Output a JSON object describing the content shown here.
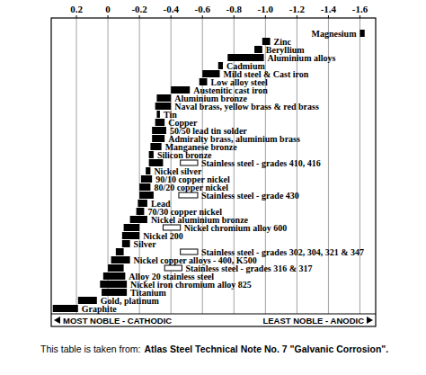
{
  "chart_data": {
    "type": "bar",
    "orientation": "horizontal",
    "color": "#000000",
    "grid": true,
    "xlim": [
      0.36,
      -1.7
    ],
    "xticks": [
      0.2,
      0,
      -0.2,
      -0.4,
      -0.6,
      -0.8,
      {
        "value": -1,
        "label": "-1.0"
      },
      -1.2,
      -1.4,
      -1.6
    ],
    "categories": [
      "Magnesium",
      "Zinc",
      "Beryllium",
      "Aluminium alloys",
      "Cadmium",
      "Mild steel & Cast iron",
      "Low alloy steel",
      "Austenitic cast iron",
      "Aluminium bronze",
      "Naval brass, yellow brass & red brass",
      "Tin",
      "Copper",
      "50/50 lead tin solder",
      "Admiralty brass, aluminium brass",
      "Manganese bronze",
      "Silicon bronze",
      "Stainless steel  - grades 410, 416",
      "Nickel silver",
      "90/10 copper nickel",
      "80/20 copper nickel",
      "Stainless steel  - grade 430",
      "Lead",
      "70/30 copper nickel",
      "Nickel aluminium bronze",
      "Nickel chromium alloy 600",
      "Nickel 200",
      "Silver",
      "Stainless steel  - grades 302, 304, 321 & 347",
      "Nickel copper alloys - 400, K500",
      "Stainless steel - grades 316 & 317",
      "Alloy 20 stainless steel",
      "Nickel iron chromium alloy 825",
      "Titanium",
      "Gold, platinum",
      "Graphite"
    ],
    "values": [
      [
        -1.6,
        -1.63
      ],
      [
        -0.98,
        -1.03
      ],
      [
        -0.93,
        -0.98
      ],
      [
        -0.76,
        -0.99
      ],
      [
        -0.7,
        -0.73
      ],
      [
        -0.6,
        -0.71
      ],
      [
        -0.58,
        -0.63
      ],
      [
        -0.4,
        -0.52
      ],
      [
        -0.31,
        -0.4
      ],
      [
        -0.3,
        -0.4
      ],
      [
        -0.31,
        -0.33
      ],
      [
        -0.3,
        -0.36
      ],
      [
        -0.28,
        -0.37
      ],
      [
        -0.28,
        -0.36
      ],
      [
        -0.27,
        -0.34
      ],
      [
        -0.26,
        -0.29
      ],
      [
        -0.26,
        -0.35
      ],
      [
        -0.24,
        -0.27
      ],
      [
        -0.21,
        -0.28
      ],
      [
        -0.2,
        -0.27
      ],
      [
        -0.2,
        -0.29
      ],
      [
        -0.19,
        -0.25
      ],
      [
        -0.18,
        -0.23
      ],
      [
        -0.14,
        -0.25
      ],
      [
        -0.1,
        -0.2
      ],
      [
        -0.09,
        -0.2
      ],
      [
        -0.09,
        -0.14
      ],
      [
        -0.05,
        -0.1
      ],
      [
        -0.02,
        -0.14
      ],
      [
        0,
        -0.1
      ],
      [
        0.03,
        -0.11
      ],
      [
        0.05,
        -0.12
      ],
      [
        0.04,
        -0.12
      ],
      [
        0.19,
        0.07
      ],
      [
        0.35,
        0.19
      ]
    ],
    "active_values": [
      null,
      null,
      null,
      null,
      null,
      null,
      null,
      null,
      null,
      null,
      null,
      null,
      null,
      null,
      null,
      null,
      [
        -0.46,
        -0.57
      ],
      null,
      null,
      null,
      [
        -0.45,
        -0.57
      ],
      null,
      null,
      null,
      [
        -0.35,
        -0.46
      ],
      null,
      null,
      [
        -0.46,
        -0.57
      ],
      null,
      [
        -0.36,
        -0.47
      ],
      null,
      null,
      null,
      null,
      null
    ],
    "annotations": [
      "MOST NOBLE - CATHODIC",
      "LEAST NOBLE - ANODIC"
    ],
    "source": {
      "prefix": "This table is taken from:",
      "reference": "Atlas Steel Technical Note No. 7 \"Galvanic Corrosion\"."
    }
  }
}
